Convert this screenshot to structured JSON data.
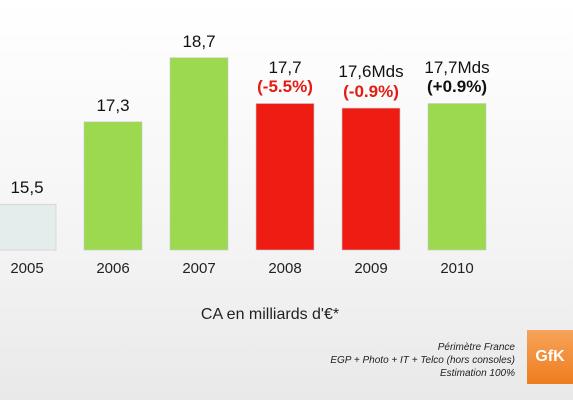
{
  "chart_data": {
    "type": "bar",
    "categories": [
      "2005",
      "2006",
      "2007",
      "2008",
      "2009",
      "2010"
    ],
    "values": [
      15.5,
      17.3,
      18.7,
      17.7,
      17.6,
      17.7
    ],
    "value_labels": [
      "15,5",
      "17,3",
      "18,7",
      "17,7",
      "17,6Mds",
      "17,7Mds"
    ],
    "change_labels": [
      "",
      "",
      "",
      "(-5.5%)",
      "(-0.9%)",
      "(+0.9%)"
    ],
    "bar_colors": [
      "#e4ecec",
      "#9cd94f",
      "#9cd94f",
      "#ee1c12",
      "#ee1c12",
      "#9cd94f"
    ],
    "change_colors": [
      "",
      "",
      "",
      "#e41b13",
      "#e41b13",
      "#111111"
    ],
    "xlabel": "CA en milliards d'€*",
    "ylabel": "",
    "ylim": [
      14.5,
      19.0
    ],
    "grid": false,
    "notes": [
      "Périmètre France",
      "EGP + Photo + IT + Telco (hors consoles)",
      "Estimation 100%"
    ]
  },
  "logo_text": "GfK"
}
